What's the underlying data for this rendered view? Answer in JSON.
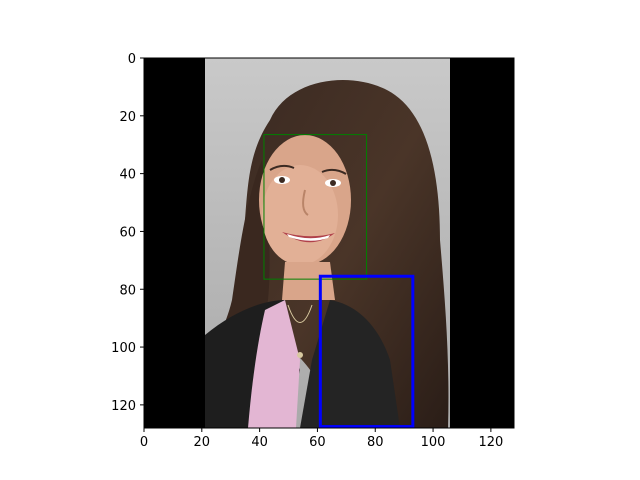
{
  "chart_data": {
    "type": "image",
    "title": "",
    "xlabel": "",
    "ylabel": "",
    "xlim": [
      0,
      128
    ],
    "ylim": [
      128,
      0
    ],
    "x_ticks": [
      0,
      20,
      40,
      60,
      80,
      100,
      120
    ],
    "y_ticks": [
      0,
      20,
      40,
      60,
      80,
      100,
      120
    ],
    "grid": false,
    "image": {
      "description": "portrait photo on black letterbox background",
      "photo_x_range": [
        21,
        106
      ],
      "photo_y_range": [
        0,
        128
      ],
      "background_color": "#000000"
    },
    "boxes": [
      {
        "label": "",
        "color": "#008000",
        "x": [
          41.5,
          77
        ],
        "y": [
          26.5,
          76.5
        ],
        "line": "thin"
      },
      {
        "label": "",
        "color": "#0000ff",
        "x": [
          61,
          93
        ],
        "y": [
          75.5,
          127.5
        ],
        "line": "thick"
      }
    ]
  }
}
